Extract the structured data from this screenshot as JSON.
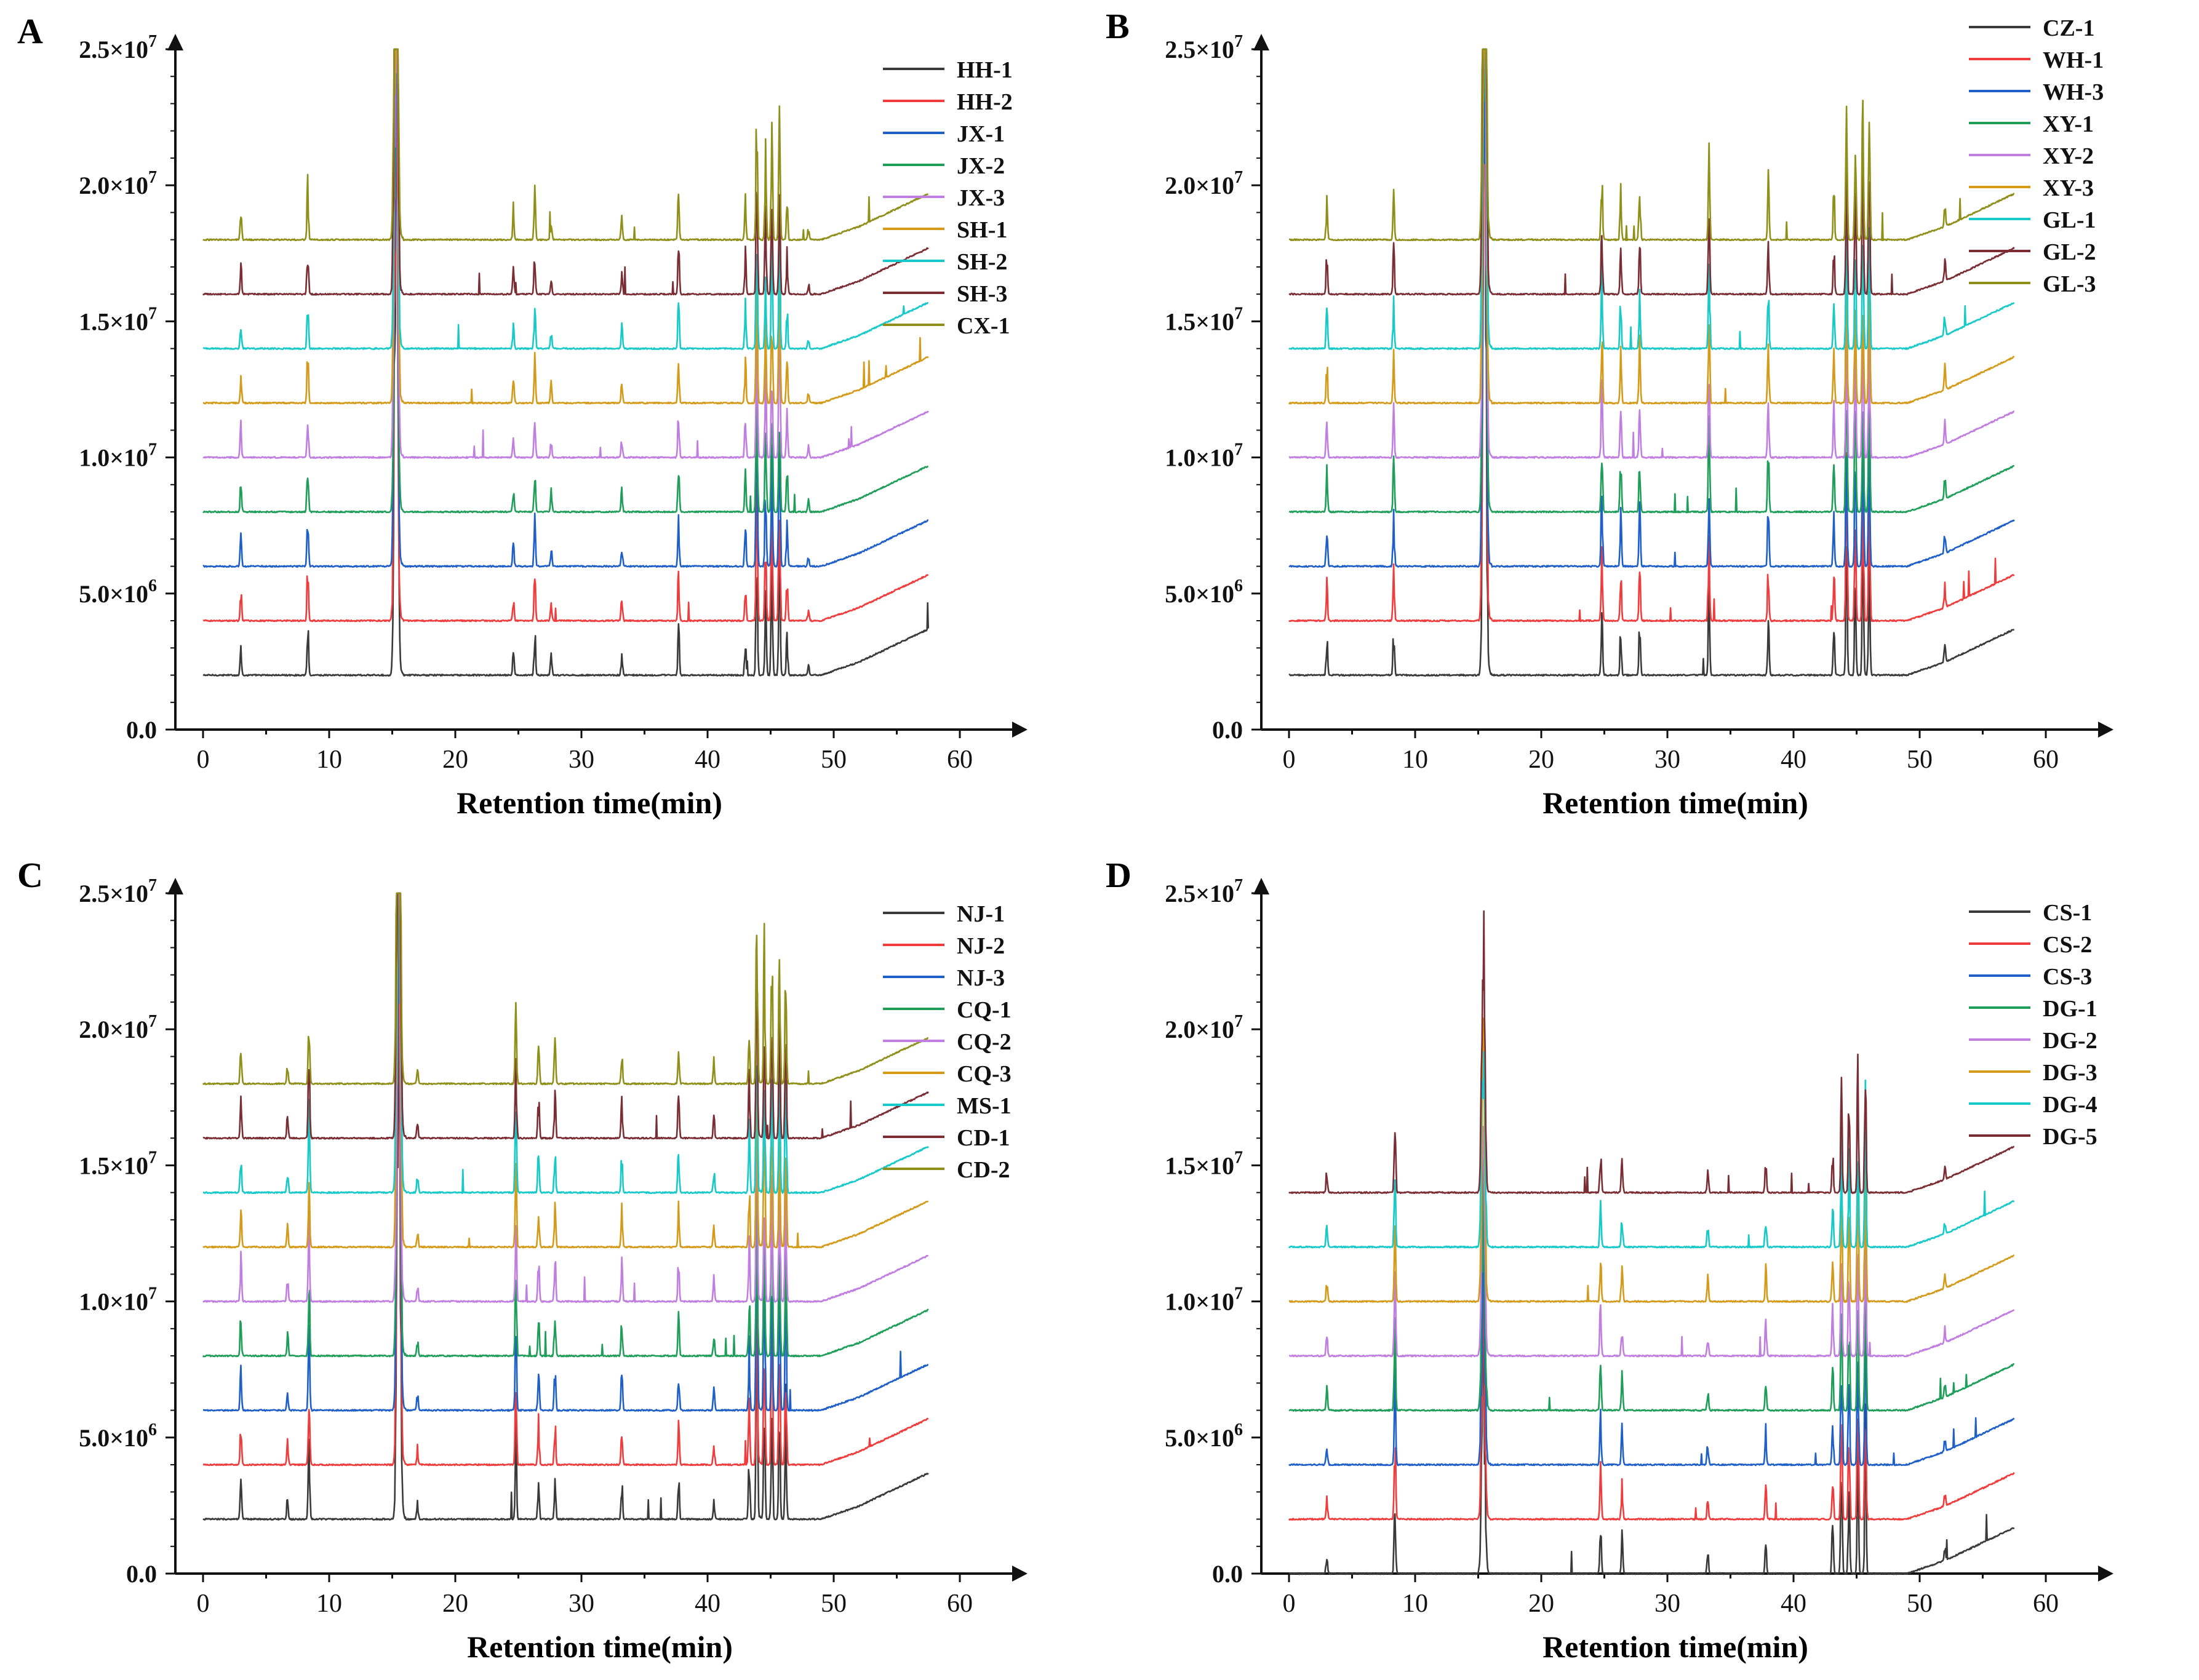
{
  "figure": "Four-panel GC-MS total ion chromatograms",
  "colors": {
    "black": "#3a3a3a",
    "red": "#f03c3c",
    "blue": "#1f5fc8",
    "green": "#1f9e5a",
    "violet": "#c07ee0",
    "gold": "#d49a1a",
    "cyan": "#18c9c9",
    "maroon": "#7a2e34",
    "olive": "#8f8f1a",
    "axis": "#111111"
  },
  "chart_data": [
    {
      "panel": "A",
      "type": "line",
      "xlabel": "Retention time(min)",
      "xlim": [
        0,
        64
      ],
      "xticks": [
        "0",
        "10",
        "20",
        "30",
        "40",
        "50",
        "60"
      ],
      "ylim": [
        0,
        25000000
      ],
      "yticks": [
        "0.0",
        "5.0×10^6",
        "1.0×10^7",
        "1.5×10^7",
        "2.0×10^7",
        "2.5×10^7"
      ],
      "legend": "top-right",
      "x_range": [
        0,
        57.5
      ],
      "series": [
        {
          "name": "HH-1",
          "color": "#3a3a3a",
          "baseline": 2000000
        },
        {
          "name": "HH-2",
          "color": "#f03c3c",
          "baseline": 4000000
        },
        {
          "name": "JX-1",
          "color": "#1f5fc8",
          "baseline": 6000000
        },
        {
          "name": "JX-2",
          "color": "#1f9e5a",
          "baseline": 8000000
        },
        {
          "name": "JX-3",
          "color": "#c07ee0",
          "baseline": 10000000
        },
        {
          "name": "SH-1",
          "color": "#d49a1a",
          "baseline": 12000000
        },
        {
          "name": "SH-2",
          "color": "#18c9c9",
          "baseline": 14000000
        },
        {
          "name": "SH-3",
          "color": "#7a2e34",
          "baseline": 16000000
        },
        {
          "name": "CX-1",
          "color": "#8f8f1a",
          "baseline": 18000000
        }
      ],
      "peaks": [
        [
          3.0,
          1100000
        ],
        [
          8.3,
          1900000
        ],
        [
          15.3,
          25000000
        ],
        [
          24.6,
          900000
        ],
        [
          26.3,
          1700000
        ],
        [
          27.6,
          700000
        ],
        [
          33.2,
          800000
        ],
        [
          37.7,
          1700000
        ],
        [
          43.0,
          1500000
        ],
        [
          43.9,
          5000000
        ],
        [
          44.6,
          3000000
        ],
        [
          45.1,
          4000000
        ],
        [
          45.7,
          5000000
        ],
        [
          46.3,
          1500000
        ],
        [
          48.0,
          400000
        ]
      ]
    },
    {
      "panel": "B",
      "type": "line",
      "xlabel": "Retention time(min)",
      "xlim": [
        0,
        64
      ],
      "xticks": [
        "0",
        "10",
        "20",
        "30",
        "40",
        "50",
        "60"
      ],
      "ylim": [
        0,
        25000000
      ],
      "yticks": [
        "0.0",
        "5.0×10^6",
        "1.0×10^7",
        "1.5×10^7",
        "2.0×10^7",
        "2.5×10^7"
      ],
      "legend": "top-right",
      "x_range": [
        0,
        57.5
      ],
      "series": [
        {
          "name": "CZ-1",
          "color": "#3a3a3a",
          "baseline": 2000000
        },
        {
          "name": "WH-1",
          "color": "#f03c3c",
          "baseline": 4000000
        },
        {
          "name": "WH-3",
          "color": "#1f5fc8",
          "baseline": 6000000
        },
        {
          "name": "XY-1",
          "color": "#1f9e5a",
          "baseline": 8000000
        },
        {
          "name": "XY-2",
          "color": "#c07ee0",
          "baseline": 10000000
        },
        {
          "name": "XY-3",
          "color": "#d49a1a",
          "baseline": 12000000
        },
        {
          "name": "GL-1",
          "color": "#18c9c9",
          "baseline": 14000000
        },
        {
          "name": "GL-2",
          "color": "#7a2e34",
          "baseline": 16000000
        },
        {
          "name": "GL-3",
          "color": "#8f8f1a",
          "baseline": 18000000
        }
      ],
      "peaks": [
        [
          3.0,
          1500000
        ],
        [
          8.3,
          1700000
        ],
        [
          15.5,
          25000000
        ],
        [
          24.8,
          2700000
        ],
        [
          26.3,
          1800000
        ],
        [
          27.8,
          2000000
        ],
        [
          33.3,
          3000000
        ],
        [
          38.0,
          2200000
        ],
        [
          43.2,
          1800000
        ],
        [
          44.2,
          5000000
        ],
        [
          44.9,
          4000000
        ],
        [
          45.5,
          5000000
        ],
        [
          46.0,
          5000000
        ],
        [
          52.0,
          800000
        ]
      ]
    },
    {
      "panel": "C",
      "type": "line",
      "xlabel": "Retention time(min)",
      "xlim": [
        0,
        64
      ],
      "xticks": [
        "0",
        "10",
        "20",
        "30",
        "40",
        "50",
        "60"
      ],
      "ylim": [
        0,
        25000000
      ],
      "yticks": [
        "0.0",
        "5.0×10^6",
        "1.0×10^7",
        "1.5×10^7",
        "2.0×10^7",
        "2.5×10^7"
      ],
      "legend": "top-right",
      "x_range": [
        0,
        57.5
      ],
      "series": [
        {
          "name": "NJ-1",
          "color": "#3a3a3a",
          "baseline": 2000000
        },
        {
          "name": "NJ-2",
          "color": "#f03c3c",
          "baseline": 4000000
        },
        {
          "name": "NJ-3",
          "color": "#1f5fc8",
          "baseline": 6000000
        },
        {
          "name": "CQ-1",
          "color": "#1f9e5a",
          "baseline": 8000000
        },
        {
          "name": "CQ-2",
          "color": "#c07ee0",
          "baseline": 10000000
        },
        {
          "name": "CQ-3",
          "color": "#d49a1a",
          "baseline": 12000000
        },
        {
          "name": "MS-1",
          "color": "#18c9c9",
          "baseline": 14000000
        },
        {
          "name": "CD-1",
          "color": "#7a2e34",
          "baseline": 16000000
        },
        {
          "name": "CD-2",
          "color": "#8f8f1a",
          "baseline": 18000000
        }
      ],
      "peaks": [
        [
          3.0,
          1500000
        ],
        [
          6.7,
          800000
        ],
        [
          8.4,
          2800000
        ],
        [
          15.5,
          25000000
        ],
        [
          17.0,
          600000
        ],
        [
          24.8,
          3000000
        ],
        [
          26.6,
          1500000
        ],
        [
          27.9,
          1700000
        ],
        [
          33.2,
          1400000
        ],
        [
          37.7,
          1500000
        ],
        [
          40.5,
          800000
        ],
        [
          43.3,
          2200000
        ],
        [
          43.9,
          7000000
        ],
        [
          44.5,
          5000000
        ],
        [
          45.1,
          5000000
        ],
        [
          45.7,
          4500000
        ],
        [
          46.2,
          4000000
        ]
      ]
    },
    {
      "panel": "D",
      "type": "line",
      "xlabel": "Retention time(min)",
      "xlim": [
        0,
        64
      ],
      "xticks": [
        "0",
        "10",
        "20",
        "30",
        "40",
        "50",
        "60"
      ],
      "ylim": [
        0,
        25000000
      ],
      "yticks": [
        "0.0",
        "5.0×10^6",
        "1.0×10^7",
        "1.5×10^7",
        "2.0×10^7",
        "2.5×10^7"
      ],
      "legend": "top-right",
      "x_range": [
        0,
        57.5
      ],
      "series": [
        {
          "name": "CS-1",
          "color": "#3a3a3a",
          "baseline": 0
        },
        {
          "name": "CS-2",
          "color": "#f03c3c",
          "baseline": 2000000
        },
        {
          "name": "CS-3",
          "color": "#1f5fc8",
          "baseline": 4000000
        },
        {
          "name": "DG-1",
          "color": "#1f9e5a",
          "baseline": 6000000
        },
        {
          "name": "DG-2",
          "color": "#c07ee0",
          "baseline": 8000000
        },
        {
          "name": "DG-3",
          "color": "#d49a1a",
          "baseline": 10000000
        },
        {
          "name": "DG-4",
          "color": "#18c9c9",
          "baseline": 12000000
        },
        {
          "name": "DG-5",
          "color": "#7a2e34",
          "baseline": 14000000
        }
      ],
      "peaks": [
        [
          3.0,
          800000
        ],
        [
          8.4,
          3000000
        ],
        [
          15.4,
          9500000
        ],
        [
          24.7,
          1800000
        ],
        [
          26.4,
          1300000
        ],
        [
          33.2,
          800000
        ],
        [
          37.8,
          1200000
        ],
        [
          43.1,
          1800000
        ],
        [
          43.8,
          4000000
        ],
        [
          44.4,
          3500000
        ],
        [
          45.1,
          4500000
        ],
        [
          45.7,
          5000000
        ],
        [
          52.0,
          500000
        ]
      ]
    }
  ]
}
